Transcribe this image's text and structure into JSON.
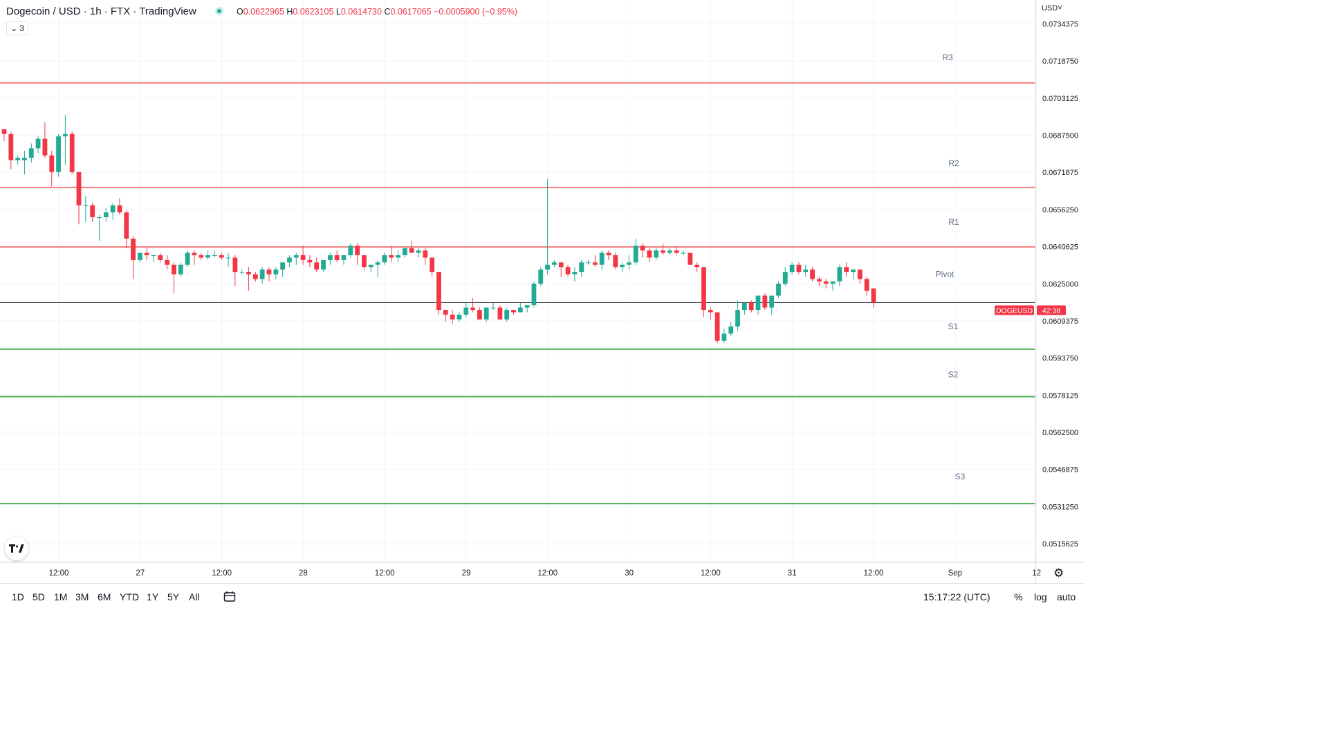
{
  "header": {
    "title": "Dogecoin / USD · 1h · FTX · TradingView",
    "ohlc": {
      "o_label": "O",
      "o": "0.0622965",
      "h_label": "H",
      "h": "0.0623105",
      "l_label": "L",
      "l": "0.0614730",
      "c_label": "C",
      "c": "0.0617065",
      "change": "−0.0005900 (−0.95%)"
    },
    "collapse_count": "3"
  },
  "currency": "USD",
  "colors": {
    "up": "#22ab94",
    "down": "#f23645",
    "resistance": "#f77c80",
    "support": "#4caf50"
  },
  "chart_data": {
    "type": "candlestick",
    "symbol": "DOGEUSD",
    "countdown": "42:38",
    "last_price": 0.0617065,
    "ylim": [
      0.050781,
      0.074438
    ],
    "y_ticks": [
      "0.0734375",
      "0.0718750",
      "0.0703125",
      "0.0687500",
      "0.0671875",
      "0.0656250",
      "0.0640625",
      "0.0625000",
      "0.0609375",
      "0.0593750",
      "0.0578125",
      "0.0562500",
      "0.0546875",
      "0.0531250",
      "0.0515625"
    ],
    "x_ticks": [
      "12:00",
      "27",
      "12:00",
      "28",
      "12:00",
      "29",
      "12:00",
      "30",
      "12:00",
      "31",
      "12:00",
      "Sep",
      "12"
    ],
    "levels": [
      {
        "name": "R3",
        "value": 0.07095,
        "kind": "resistance"
      },
      {
        "name": "R2",
        "value": 0.06655,
        "kind": "resistance"
      },
      {
        "name": "R1",
        "value": 0.06405,
        "kind": "resistance"
      },
      {
        "name": "Pivot",
        "value": null,
        "kind": "pivot"
      },
      {
        "name": "S1",
        "value": 0.05975,
        "kind": "support"
      },
      {
        "name": "S2",
        "value": 0.05775,
        "kind": "support"
      },
      {
        "name": "S3",
        "value": 0.05325,
        "kind": "support"
      }
    ],
    "candles": [
      [
        0.069,
        0.069,
        0.0685,
        0.0688
      ],
      [
        0.0688,
        0.0689,
        0.0673,
        0.0677
      ],
      [
        0.0677,
        0.0679,
        0.0675,
        0.0678
      ],
      [
        0.0677,
        0.0681,
        0.0671,
        0.0678
      ],
      [
        0.0678,
        0.0684,
        0.0676,
        0.0682
      ],
      [
        0.0682,
        0.0687,
        0.068,
        0.0686
      ],
      [
        0.0686,
        0.0693,
        0.0678,
        0.0679
      ],
      [
        0.0679,
        0.0681,
        0.0666,
        0.0672
      ],
      [
        0.0672,
        0.0688,
        0.067,
        0.0687
      ],
      [
        0.0687,
        0.0696,
        0.0675,
        0.0688
      ],
      [
        0.0688,
        0.0689,
        0.0671,
        0.0672
      ],
      [
        0.0672,
        0.0672,
        0.065,
        0.0658
      ],
      [
        0.0658,
        0.0662,
        0.0651,
        0.0658
      ],
      [
        0.0658,
        0.0659,
        0.0651,
        0.0653
      ],
      [
        0.0653,
        0.0654,
        0.0643,
        0.0653
      ],
      [
        0.0653,
        0.0657,
        0.0651,
        0.0655
      ],
      [
        0.0655,
        0.0659,
        0.0652,
        0.0658
      ],
      [
        0.0658,
        0.0661,
        0.0654,
        0.0655
      ],
      [
        0.0655,
        0.0656,
        0.064,
        0.0644
      ],
      [
        0.0644,
        0.0645,
        0.0627,
        0.0635
      ],
      [
        0.0635,
        0.0638,
        0.0634,
        0.0638
      ],
      [
        0.0638,
        0.064,
        0.0635,
        0.0637
      ],
      [
        0.0637,
        0.0637,
        0.0634,
        0.0637
      ],
      [
        0.0637,
        0.0638,
        0.0634,
        0.0635
      ],
      [
        0.0635,
        0.0637,
        0.0631,
        0.0633
      ],
      [
        0.0633,
        0.0634,
        0.0621,
        0.0629
      ],
      [
        0.0629,
        0.0634,
        0.0628,
        0.0633
      ],
      [
        0.0633,
        0.0639,
        0.0632,
        0.0638
      ],
      [
        0.0638,
        0.0639,
        0.0633,
        0.0637
      ],
      [
        0.0637,
        0.0638,
        0.0635,
        0.0636
      ],
      [
        0.0636,
        0.0639,
        0.0635,
        0.0637
      ],
      [
        0.0637,
        0.0639,
        0.0636,
        0.0637
      ],
      [
        0.0637,
        0.0638,
        0.0635,
        0.0636
      ],
      [
        0.0636,
        0.0638,
        0.0632,
        0.0636
      ],
      [
        0.0636,
        0.0637,
        0.0624,
        0.063
      ],
      [
        0.063,
        0.0631,
        0.0629,
        0.063
      ],
      [
        0.063,
        0.0632,
        0.0622,
        0.0629
      ],
      [
        0.0629,
        0.063,
        0.0626,
        0.0627
      ],
      [
        0.0627,
        0.0632,
        0.0625,
        0.0631
      ],
      [
        0.0631,
        0.0632,
        0.0626,
        0.0629
      ],
      [
        0.0629,
        0.0632,
        0.0627,
        0.0631
      ],
      [
        0.0631,
        0.0634,
        0.0628,
        0.0634
      ],
      [
        0.0634,
        0.0637,
        0.0632,
        0.0636
      ],
      [
        0.0636,
        0.0638,
        0.0633,
        0.0637
      ],
      [
        0.0637,
        0.0641,
        0.0633,
        0.0635
      ],
      [
        0.0635,
        0.0637,
        0.0632,
        0.0634
      ],
      [
        0.0634,
        0.0636,
        0.063,
        0.0631
      ],
      [
        0.0631,
        0.0635,
        0.063,
        0.0635
      ],
      [
        0.0635,
        0.0638,
        0.0633,
        0.0637
      ],
      [
        0.0637,
        0.0639,
        0.0634,
        0.0635
      ],
      [
        0.0635,
        0.0637,
        0.0633,
        0.0637
      ],
      [
        0.0637,
        0.0642,
        0.0636,
        0.0641
      ],
      [
        0.0641,
        0.0642,
        0.0633,
        0.0637
      ],
      [
        0.0637,
        0.0637,
        0.0631,
        0.0632
      ],
      [
        0.0632,
        0.0633,
        0.063,
        0.0633
      ],
      [
        0.0633,
        0.0635,
        0.0628,
        0.0634
      ],
      [
        0.0634,
        0.0638,
        0.0633,
        0.0637
      ],
      [
        0.0637,
        0.0641,
        0.0634,
        0.0636
      ],
      [
        0.0636,
        0.0639,
        0.0634,
        0.0637
      ],
      [
        0.0637,
        0.064,
        0.0636,
        0.064
      ],
      [
        0.064,
        0.0643,
        0.0638,
        0.0638
      ],
      [
        0.0638,
        0.064,
        0.0636,
        0.0639
      ],
      [
        0.0639,
        0.064,
        0.0633,
        0.0636
      ],
      [
        0.0636,
        0.0636,
        0.0628,
        0.063
      ],
      [
        0.063,
        0.063,
        0.0612,
        0.0614
      ],
      [
        0.0614,
        0.0614,
        0.0609,
        0.0612
      ],
      [
        0.0612,
        0.0614,
        0.0608,
        0.061
      ],
      [
        0.061,
        0.0613,
        0.0609,
        0.0612
      ],
      [
        0.0612,
        0.0617,
        0.0611,
        0.0615
      ],
      [
        0.0615,
        0.0619,
        0.0613,
        0.0614
      ],
      [
        0.0614,
        0.0615,
        0.061,
        0.061
      ],
      [
        0.061,
        0.0615,
        0.0609,
        0.0615
      ],
      [
        0.0615,
        0.0617,
        0.0614,
        0.0615
      ],
      [
        0.0615,
        0.0616,
        0.061,
        0.061
      ],
      [
        0.061,
        0.0615,
        0.0609,
        0.0614
      ],
      [
        0.0614,
        0.0614,
        0.0612,
        0.0613
      ],
      [
        0.0613,
        0.0617,
        0.0613,
        0.0615
      ],
      [
        0.0615,
        0.0615,
        0.0613,
        0.0616
      ],
      [
        0.0616,
        0.0626,
        0.0615,
        0.0625
      ],
      [
        0.0625,
        0.0632,
        0.0624,
        0.0631
      ],
      [
        0.0631,
        0.0669,
        0.0629,
        0.0633
      ],
      [
        0.0633,
        0.0635,
        0.0632,
        0.0634
      ],
      [
        0.0634,
        0.0634,
        0.0628,
        0.0632
      ],
      [
        0.0632,
        0.0633,
        0.0628,
        0.0629
      ],
      [
        0.0629,
        0.0632,
        0.0626,
        0.063
      ],
      [
        0.063,
        0.0635,
        0.0628,
        0.0634
      ],
      [
        0.0634,
        0.0635,
        0.0633,
        0.0634
      ],
      [
        0.0634,
        0.0637,
        0.0632,
        0.0633
      ],
      [
        0.0633,
        0.0639,
        0.0631,
        0.0638
      ],
      [
        0.0638,
        0.0639,
        0.0635,
        0.0637
      ],
      [
        0.0637,
        0.0638,
        0.0631,
        0.0632
      ],
      [
        0.0632,
        0.0634,
        0.063,
        0.0633
      ],
      [
        0.0633,
        0.0637,
        0.0631,
        0.0634
      ],
      [
        0.0634,
        0.0644,
        0.0633,
        0.0641
      ],
      [
        0.0641,
        0.0642,
        0.0636,
        0.0639
      ],
      [
        0.0639,
        0.064,
        0.0634,
        0.0636
      ],
      [
        0.0636,
        0.064,
        0.0635,
        0.0639
      ],
      [
        0.0639,
        0.0642,
        0.0637,
        0.0638
      ],
      [
        0.0638,
        0.064,
        0.0637,
        0.0639
      ],
      [
        0.0639,
        0.0641,
        0.0637,
        0.0638
      ],
      [
        0.0638,
        0.0639,
        0.0637,
        0.0638
      ],
      [
        0.0638,
        0.0638,
        0.0633,
        0.0633
      ],
      [
        0.0633,
        0.0634,
        0.063,
        0.0632
      ],
      [
        0.0632,
        0.0632,
        0.0611,
        0.0614
      ],
      [
        0.0614,
        0.0615,
        0.061,
        0.0613
      ],
      [
        0.0613,
        0.0613,
        0.06,
        0.0601
      ],
      [
        0.0601,
        0.0606,
        0.06,
        0.0604
      ],
      [
        0.0604,
        0.0609,
        0.0603,
        0.0607
      ],
      [
        0.0607,
        0.0618,
        0.0605,
        0.0614
      ],
      [
        0.0614,
        0.0617,
        0.0612,
        0.0617
      ],
      [
        0.0617,
        0.0618,
        0.0613,
        0.0614
      ],
      [
        0.0614,
        0.062,
        0.0612,
        0.062
      ],
      [
        0.062,
        0.0621,
        0.0614,
        0.0615
      ],
      [
        0.0615,
        0.062,
        0.0612,
        0.062
      ],
      [
        0.062,
        0.0626,
        0.0619,
        0.0625
      ],
      [
        0.0625,
        0.0632,
        0.0624,
        0.063
      ],
      [
        0.063,
        0.0634,
        0.0629,
        0.0633
      ],
      [
        0.0633,
        0.0634,
        0.0629,
        0.063
      ],
      [
        0.063,
        0.0633,
        0.0628,
        0.0631
      ],
      [
        0.0631,
        0.0632,
        0.0626,
        0.0627
      ],
      [
        0.0627,
        0.0628,
        0.0624,
        0.0626
      ],
      [
        0.0626,
        0.0627,
        0.0623,
        0.0625
      ],
      [
        0.0625,
        0.0626,
        0.0622,
        0.0626
      ],
      [
        0.0626,
        0.0633,
        0.0624,
        0.0632
      ],
      [
        0.0632,
        0.0634,
        0.0628,
        0.063
      ],
      [
        0.063,
        0.0631,
        0.0627,
        0.0631
      ],
      [
        0.0631,
        0.0631,
        0.0625,
        0.0627
      ],
      [
        0.0627,
        0.0628,
        0.062,
        0.0622
      ],
      [
        0.0623,
        0.0623,
        0.0615,
        0.0617
      ]
    ]
  },
  "bottom": {
    "ranges": [
      "1D",
      "5D",
      "1M",
      "3M",
      "6M",
      "YTD",
      "1Y",
      "5Y",
      "All"
    ],
    "clock": "15:17:22 (UTC)",
    "percent": "%",
    "log": "log",
    "auto": "auto"
  }
}
